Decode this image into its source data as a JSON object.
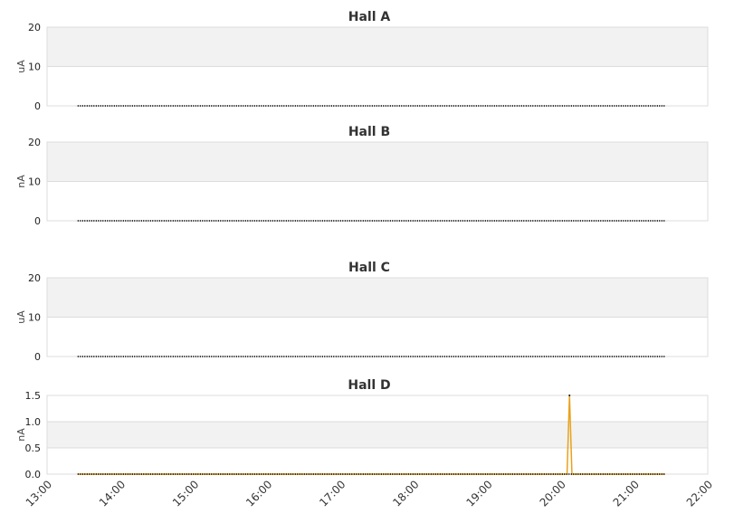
{
  "chart_data": [
    {
      "type": "line",
      "title": "Hall A",
      "ylabel": "uA",
      "ylim": [
        0,
        20
      ],
      "yticks": [
        "0",
        "10",
        "20"
      ],
      "bands": [
        [
          10,
          20
        ]
      ],
      "series": [
        {
          "points": [
            [
              "13:25",
              0
            ],
            [
              "21:25",
              0
            ]
          ]
        }
      ]
    },
    {
      "type": "line",
      "title": "Hall B",
      "ylabel": "nA",
      "ylim": [
        0,
        20
      ],
      "yticks": [
        "0",
        "10",
        "20"
      ],
      "bands": [
        [
          10,
          20
        ]
      ],
      "series": [
        {
          "points": [
            [
              "13:25",
              0
            ],
            [
              "21:25",
              0
            ]
          ]
        }
      ]
    },
    {
      "type": "line",
      "title": "Hall C",
      "ylabel": "uA",
      "ylim": [
        0,
        20
      ],
      "yticks": [
        "0",
        "10",
        "20"
      ],
      "bands": [
        [
          10,
          20
        ]
      ],
      "series": [
        {
          "points": [
            [
              "13:25",
              0
            ],
            [
              "21:25",
              0
            ]
          ]
        }
      ]
    },
    {
      "type": "line",
      "title": "Hall D",
      "ylabel": "nA",
      "ylim": [
        0,
        1.5
      ],
      "yticks": [
        "0.0",
        "0.5",
        "1.0",
        "1.5"
      ],
      "bands": [
        [
          0.5,
          1.0
        ]
      ],
      "series": [
        {
          "color": "#e8a21c",
          "points": [
            [
              "13:25",
              0
            ],
            [
              "20:05",
              0
            ],
            [
              "20:07",
              1.5
            ],
            [
              "20:09",
              0
            ],
            [
              "21:25",
              0
            ]
          ]
        }
      ],
      "xlim": [
        "13:00",
        "22:00"
      ],
      "xticks": [
        "13:00",
        "14:00",
        "15:00",
        "16:00",
        "17:00",
        "18:00",
        "19:00",
        "20:00",
        "21:00",
        "22:00"
      ]
    }
  ]
}
